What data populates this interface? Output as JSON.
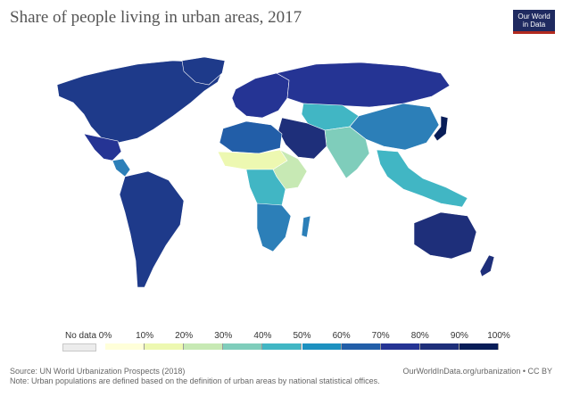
{
  "header": {
    "title": "Share of people living in urban areas, 2017",
    "logo_line1": "Our World",
    "logo_line2": "in Data"
  },
  "map": {
    "regions": [
      {
        "name": "North America",
        "share": 82,
        "color": "#1e3a8a"
      },
      {
        "name": "Mexico",
        "share": 80,
        "color": "#253494"
      },
      {
        "name": "Central America",
        "share": 58,
        "color": "#2c7fb8"
      },
      {
        "name": "South America",
        "share": 82,
        "color": "#1e3a8a"
      },
      {
        "name": "Europe",
        "share": 75,
        "color": "#253494"
      },
      {
        "name": "Russia",
        "share": 74,
        "color": "#253494"
      },
      {
        "name": "Central Asia",
        "share": 48,
        "color": "#41b6c4"
      },
      {
        "name": "South Asia",
        "share": 34,
        "color": "#7fcdbb"
      },
      {
        "name": "China",
        "share": 58,
        "color": "#2c7fb8"
      },
      {
        "name": "Japan",
        "share": 92,
        "color": "#081d58"
      },
      {
        "name": "Middle East",
        "share": 85,
        "color": "#1e2f7a"
      },
      {
        "name": "North Africa",
        "share": 70,
        "color": "#225ea8"
      },
      {
        "name": "Sahel",
        "share": 18,
        "color": "#edf8b1"
      },
      {
        "name": "East Africa",
        "share": 26,
        "color": "#c7e9b4"
      },
      {
        "name": "Central Africa",
        "share": 45,
        "color": "#41b6c4"
      },
      {
        "name": "Southern Africa",
        "share": 63,
        "color": "#2c7fb8"
      },
      {
        "name": "Southeast Asia",
        "share": 52,
        "color": "#41b6c4"
      },
      {
        "name": "Australia",
        "share": 86,
        "color": "#1e2f7a"
      },
      {
        "name": "Greenland",
        "share": 87,
        "color": "#1e3a8a"
      }
    ]
  },
  "legend": {
    "no_data_label": "No data",
    "ticks": [
      "0%",
      "10%",
      "20%",
      "30%",
      "40%",
      "50%",
      "60%",
      "70%",
      "80%",
      "90%",
      "100%"
    ],
    "colors": [
      "#ffffd9",
      "#edf8b1",
      "#c7e9b4",
      "#7fcdbb",
      "#41b6c4",
      "#1d91c0",
      "#225ea8",
      "#253494",
      "#1e2f7a",
      "#081d58"
    ]
  },
  "footer": {
    "source": "Source: UN World Urbanization Prospects (2018)",
    "note": "Note: Urban populations are defined based on the definition of urban areas by national statistical offices.",
    "url": "OurWorldInData.org/urbanization • CC BY"
  }
}
